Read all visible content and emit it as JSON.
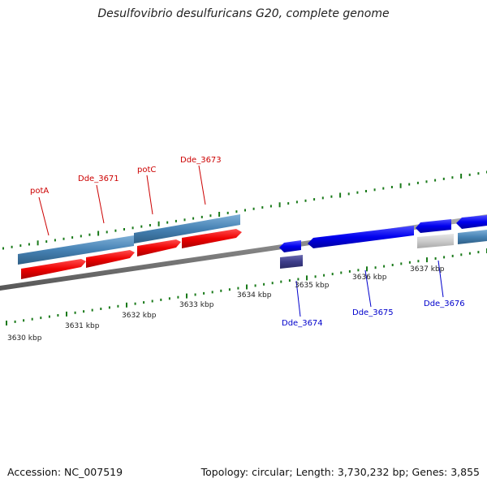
{
  "title": "Desulfovibrio desulfuricans G20, complete genome",
  "colors": {
    "forward_gene": "#ee0000",
    "reverse_gene": "#0000ee",
    "forward_label": "#cc0000",
    "reverse_label": "#0000cc",
    "steel_bar": "#4682b4",
    "purple_bar": "#3d3d8a",
    "grey_bar": "#cccccc",
    "tick_mark": "#1a7a1a",
    "backbone": "#888888"
  },
  "axis": {
    "ticks": [
      "3630 kbp",
      "3631 kbp",
      "3632 kbp",
      "3633 kbp",
      "3634 kbp",
      "3635 kbp",
      "3636 kbp",
      "3637 kbp"
    ]
  },
  "genes": {
    "forward": [
      {
        "label": "potA"
      },
      {
        "label": "Dde_3671"
      },
      {
        "label": "potC"
      },
      {
        "label": "Dde_3673"
      }
    ],
    "reverse": [
      {
        "label": "Dde_3674"
      },
      {
        "label": "Dde_3675"
      },
      {
        "label": "Dde_3676"
      }
    ]
  },
  "footer": {
    "accession": "Accession: NC_007519",
    "summary": "Topology: circular; Length: 3,730,232 bp; Genes: 3,855"
  }
}
